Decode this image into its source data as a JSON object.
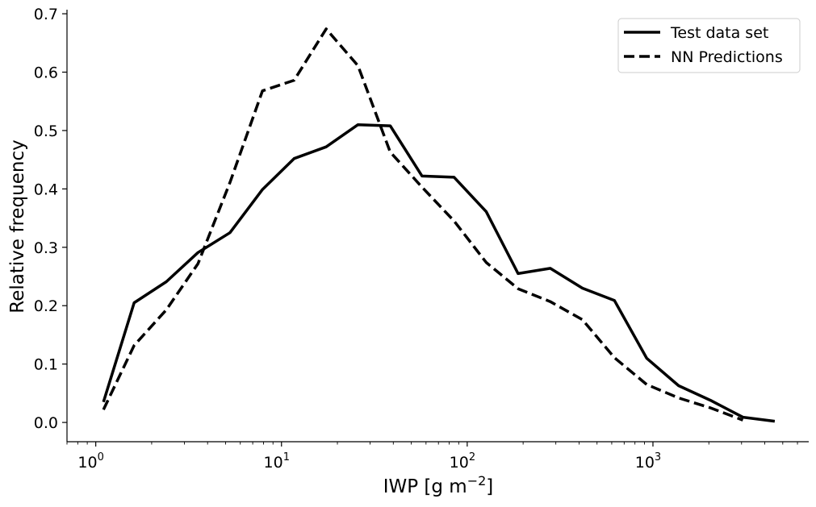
{
  "chart_data": {
    "type": "line",
    "xscale": "log",
    "xlim": [
      0.7,
      6900
    ],
    "ylim": [
      -0.033,
      0.707
    ],
    "xlabel": "IWP [g m",
    "xlabel_exponent": "−2",
    "xlabel_suffix": "]",
    "ylabel": "Relative frequency",
    "grid": false,
    "legend_position": "top-right",
    "x_ticks": [
      {
        "value": 1,
        "base": "10",
        "exp": "0"
      },
      {
        "value": 10,
        "base": "10",
        "exp": "1"
      },
      {
        "value": 100,
        "base": "10",
        "exp": "2"
      },
      {
        "value": 1000,
        "base": "10",
        "exp": "3"
      }
    ],
    "y_ticks": [
      {
        "value": 0.0,
        "label": "0.0"
      },
      {
        "value": 0.1,
        "label": "0.1"
      },
      {
        "value": 0.2,
        "label": "0.2"
      },
      {
        "value": 0.3,
        "label": "0.3"
      },
      {
        "value": 0.4,
        "label": "0.4"
      },
      {
        "value": 0.5,
        "label": "0.5"
      },
      {
        "value": 0.6,
        "label": "0.6"
      },
      {
        "value": 0.7,
        "label": "0.7"
      }
    ],
    "series": [
      {
        "name": "Test data set",
        "style": "solid",
        "color": "#000000",
        "x": [
          1.1,
          1.61,
          2.4,
          3.55,
          5.28,
          7.9,
          11.7,
          17.4,
          25.8,
          38.5,
          57.1,
          85.0,
          126.5,
          188.0,
          280.0,
          417.0,
          620.0,
          925.0,
          1375.0,
          2040.0,
          3050.0,
          4530.0
        ],
        "values": [
          0.035,
          0.205,
          0.241,
          0.291,
          0.325,
          0.399,
          0.452,
          0.472,
          0.51,
          0.508,
          0.422,
          0.42,
          0.361,
          0.255,
          0.264,
          0.23,
          0.209,
          0.11,
          0.063,
          0.038,
          0.009,
          0.002
        ]
      },
      {
        "name": "NN Predictions",
        "style": "dashed",
        "color": "#000000",
        "x": [
          1.1,
          1.61,
          2.4,
          3.55,
          5.28,
          7.9,
          11.7,
          17.4,
          25.8,
          38.5,
          57.1,
          85.0,
          126.5,
          188.0,
          280.0,
          417.0,
          620.0,
          925.0,
          1375.0,
          2040.0,
          3050.0
        ],
        "values": [
          0.022,
          0.132,
          0.193,
          0.272,
          0.411,
          0.568,
          0.586,
          0.674,
          0.611,
          0.463,
          0.403,
          0.345,
          0.274,
          0.229,
          0.207,
          0.176,
          0.111,
          0.065,
          0.042,
          0.025,
          0.004
        ]
      }
    ]
  }
}
